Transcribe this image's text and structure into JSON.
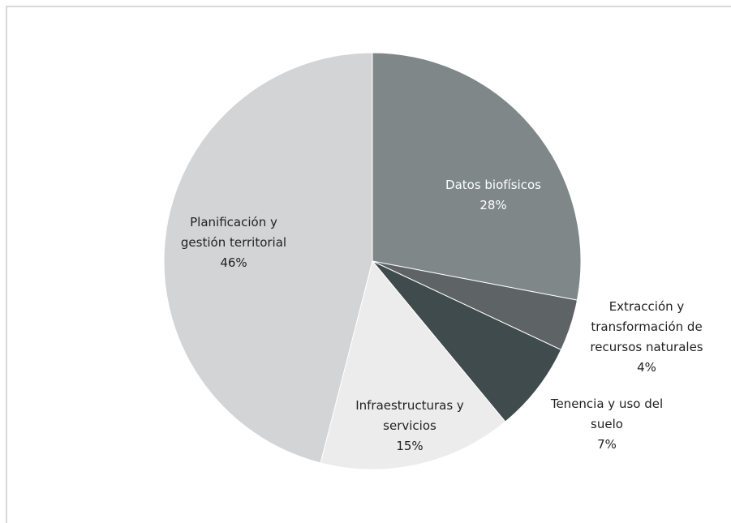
{
  "chart_data": {
    "type": "pie",
    "categories": [
      "Datos biofísicos",
      "Extracción y\ntransformación de\nrecursos naturales",
      "Tenencia y uso del\nsuelo",
      "Infraestructuras y\nservicios",
      "Planificación y\ngestión territorial"
    ],
    "values": [
      28,
      4,
      7,
      15,
      46
    ],
    "value_labels": [
      "28%",
      "4%",
      "7%",
      "15%",
      "46%"
    ],
    "colors": [
      "#7f8789",
      "#5e6466",
      "#3f4b4c",
      "#ececec",
      "#d3d4d6"
    ]
  }
}
